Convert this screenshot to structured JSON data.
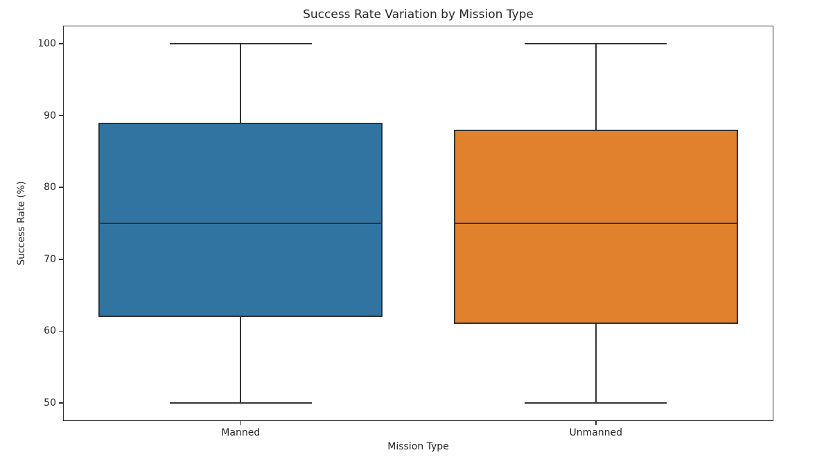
{
  "chart_data": {
    "type": "box",
    "title": "Success Rate Variation by Mission Type",
    "xlabel": "Mission Type",
    "ylabel": "Success Rate (%)",
    "categories": [
      "Manned",
      "Unmanned"
    ],
    "series": [
      {
        "name": "Manned",
        "whisker_low": 50,
        "q1": 62,
        "median": 75,
        "q3": 89,
        "whisker_high": 100,
        "fill_color": "#3274a1",
        "edge_color": "#333333"
      },
      {
        "name": "Unmanned",
        "whisker_low": 50,
        "q1": 61,
        "median": 75,
        "q3": 88,
        "whisker_high": 100,
        "fill_color": "#e1812b",
        "edge_color": "#333333"
      }
    ],
    "yticks": [
      50,
      60,
      70,
      80,
      90,
      100
    ],
    "ylim": [
      47.5,
      102.5
    ],
    "grid": false,
    "legend_position": "none"
  }
}
